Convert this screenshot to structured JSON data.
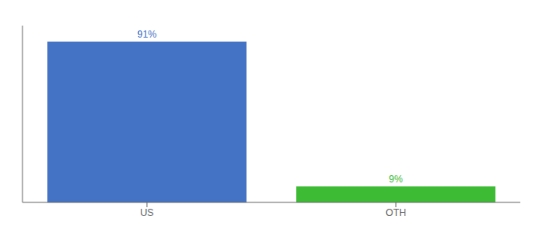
{
  "chart_data": {
    "type": "bar",
    "categories": [
      "US",
      "OTH"
    ],
    "values": [
      91,
      9
    ],
    "value_labels": [
      "91%",
      "9%"
    ],
    "colors": [
      "#4472c4",
      "#3dbb35"
    ],
    "ylim": [
      0,
      100
    ],
    "data_labels": true,
    "tick_labels": "x",
    "grid": false
  }
}
